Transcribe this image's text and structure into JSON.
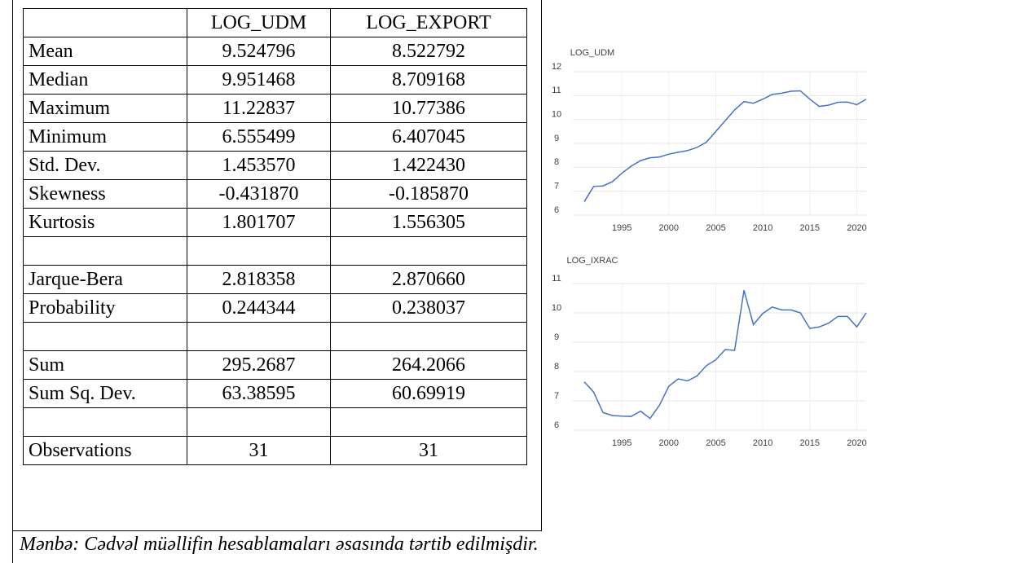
{
  "table": {
    "header": [
      "LOG_UDM",
      "LOG_EXPORT"
    ],
    "groups": [
      [
        [
          "Mean",
          "9.524796",
          "8.522792"
        ],
        [
          "Median",
          "9.951468",
          "8.709168"
        ],
        [
          "Maximum",
          "11.22837",
          "10.77386"
        ],
        [
          "Minimum",
          "6.555499",
          "6.407045"
        ],
        [
          "Std. Dev.",
          "1.453570",
          "1.422430"
        ],
        [
          "Skewness",
          "-0.431870",
          "-0.185870"
        ],
        [
          "Kurtosis",
          "1.801707",
          "1.556305"
        ]
      ],
      [
        [
          "Jarque-Bera",
          "2.818358",
          "2.870660"
        ],
        [
          "Probability",
          "0.244344",
          "0.238037"
        ]
      ],
      [
        [
          "Sum",
          "295.2687",
          "264.2066"
        ],
        [
          "Sum Sq. Dev.",
          "63.38595",
          "60.69919"
        ]
      ],
      [
        [
          "Observations",
          "31",
          "31"
        ]
      ]
    ]
  },
  "chart_data": [
    {
      "type": "line",
      "title": "LOG_UDM",
      "x": [
        1991,
        1992,
        1993,
        1994,
        1995,
        1996,
        1997,
        1998,
        1999,
        2000,
        2001,
        2002,
        2003,
        2004,
        2005,
        2006,
        2007,
        2008,
        2009,
        2010,
        2011,
        2012,
        2013,
        2014,
        2015,
        2016,
        2017,
        2018,
        2019,
        2020,
        2021
      ],
      "series": [
        {
          "name": "LOG_UDM",
          "color": "#4472c4",
          "values": [
            6.56,
            7.2,
            7.22,
            7.4,
            7.75,
            8.05,
            8.28,
            8.4,
            8.43,
            8.55,
            8.63,
            8.7,
            8.83,
            9.05,
            9.5,
            9.95,
            10.4,
            10.75,
            10.68,
            10.85,
            11.05,
            11.1,
            11.18,
            11.2,
            10.85,
            10.55,
            10.6,
            10.72,
            10.73,
            10.62,
            10.85
          ]
        }
      ],
      "xlim": [
        1991,
        2021
      ],
      "xticks": [
        1995,
        2000,
        2005,
        2010,
        2015,
        2020
      ],
      "ylim": [
        6,
        12
      ],
      "yticks": [
        6,
        7,
        8,
        9,
        10,
        11,
        12
      ],
      "grid": true
    },
    {
      "type": "line",
      "title": "LOG_IXRAC",
      "x": [
        1991,
        1992,
        1993,
        1994,
        1995,
        1996,
        1997,
        1998,
        1999,
        2000,
        2001,
        2002,
        2003,
        2004,
        2005,
        2006,
        2007,
        2008,
        2009,
        2010,
        2011,
        2012,
        2013,
        2014,
        2015,
        2016,
        2017,
        2018,
        2019,
        2020,
        2021
      ],
      "series": [
        {
          "name": "LOG_IXRAC",
          "color": "#4472c4",
          "values": [
            7.65,
            7.3,
            6.6,
            6.5,
            6.48,
            6.47,
            6.65,
            6.4,
            6.85,
            7.5,
            7.75,
            7.68,
            7.85,
            8.2,
            8.4,
            8.75,
            8.72,
            10.77,
            9.6,
            9.98,
            10.2,
            10.1,
            10.1,
            10.0,
            9.47,
            9.52,
            9.65,
            9.88,
            9.88,
            9.52,
            10.0
          ]
        }
      ],
      "xlim": [
        1991,
        2021
      ],
      "xticks": [
        1995,
        2000,
        2005,
        2010,
        2015,
        2020
      ],
      "ylim": [
        6,
        11
      ],
      "yticks": [
        6,
        7,
        8,
        9,
        10,
        11
      ],
      "grid": true
    }
  ],
  "caption": "Mənbə: Cədvəl müəllifin hesablamaları əsasında tərtib edilmişdir."
}
